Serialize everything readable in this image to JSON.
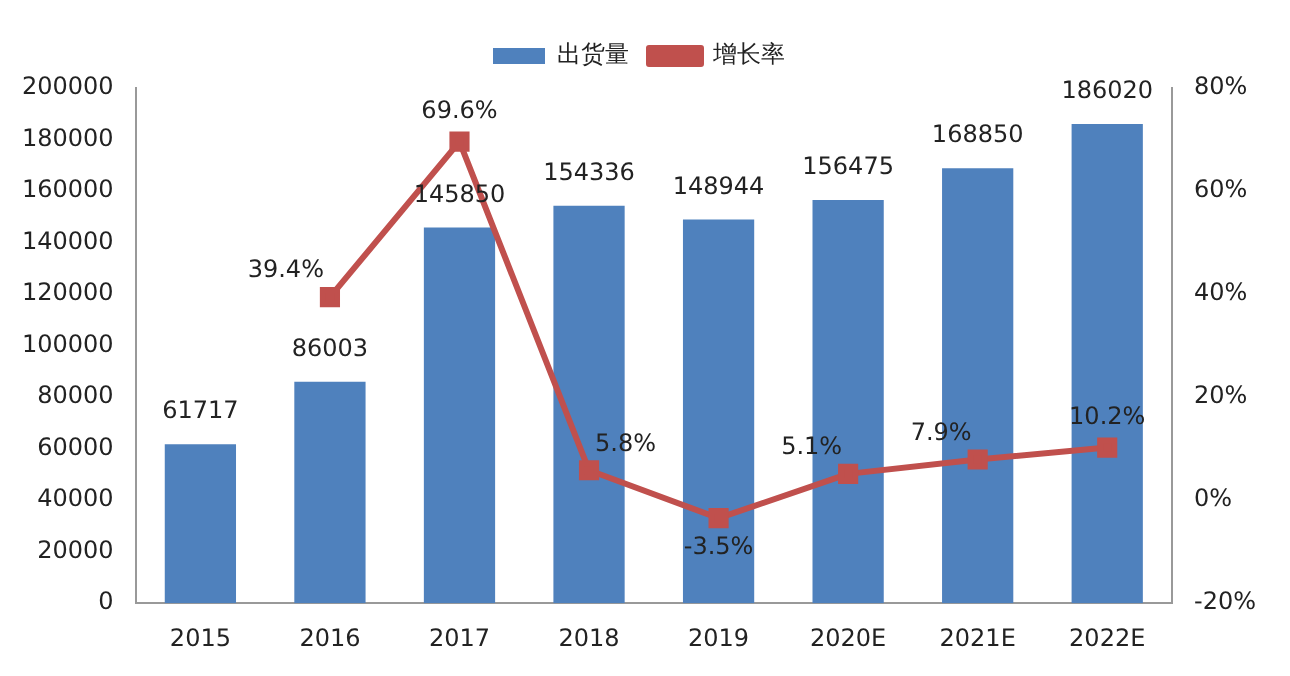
{
  "chart_data": {
    "type": "bar",
    "categories": [
      "2015",
      "2016",
      "2017",
      "2018",
      "2019",
      "2020E",
      "2021E",
      "2022E"
    ],
    "series": [
      {
        "name": "出货量",
        "color": "#4f81bd",
        "values": [
          61717,
          86003,
          145850,
          154336,
          148944,
          156475,
          168850,
          186020
        ],
        "value_labels": [
          "61717",
          "86003",
          "145850",
          "154336",
          "148944",
          "156475",
          "168850",
          "186020"
        ]
      },
      {
        "name": "增长率",
        "type": "line",
        "axis": "y2",
        "color": "#c0504d",
        "marker": "square",
        "values": [
          null,
          39.4,
          69.6,
          5.8,
          -3.5,
          5.1,
          7.9,
          10.2
        ],
        "value_labels": [
          null,
          "39.4%",
          "69.6%",
          "5.8%",
          "-3.5%",
          "5.1%",
          "7.9%",
          "10.2%"
        ]
      }
    ],
    "ylim": [
      0,
      200000
    ],
    "yticks": [
      0,
      20000,
      40000,
      60000,
      80000,
      100000,
      120000,
      140000,
      160000,
      180000,
      200000
    ],
    "y2lim": [
      -20,
      80
    ],
    "y2ticks": [
      {
        "value": -20,
        "label": "-20%"
      },
      {
        "value": 0,
        "label": "0%"
      },
      {
        "value": 20,
        "label": "20%"
      },
      {
        "value": 40,
        "label": "40%"
      },
      {
        "value": 60,
        "label": "60%"
      },
      {
        "value": 80,
        "label": "80%"
      }
    ],
    "grid": false,
    "legend": "top"
  }
}
